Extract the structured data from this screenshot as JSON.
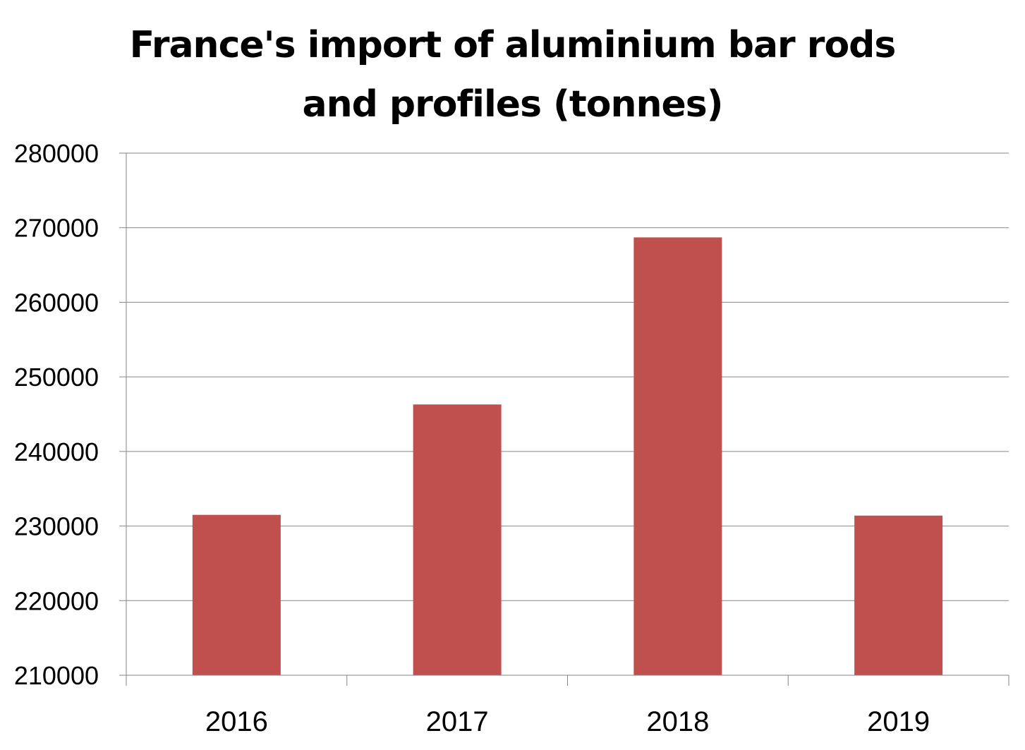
{
  "chart_data": {
    "type": "bar",
    "title": "France's import of aluminium bar rods and profiles (tonnes)",
    "title_lines": [
      "France's import of aluminium bar rods",
      "and profiles (tonnes)"
    ],
    "categories": [
      "2016",
      "2017",
      "2018",
      "2019"
    ],
    "values": [
      231500,
      246300,
      268700,
      231400
    ],
    "xlabel": "",
    "ylabel": "",
    "ylim": [
      210000,
      280000
    ],
    "y_ticks": [
      "210000",
      "220000",
      "230000",
      "240000",
      "250000",
      "260000",
      "270000",
      "280000"
    ],
    "grid": true,
    "legend": "none",
    "bar_color": "#c0504d",
    "gridline_color": "#868686",
    "axis_color": "#868686"
  }
}
